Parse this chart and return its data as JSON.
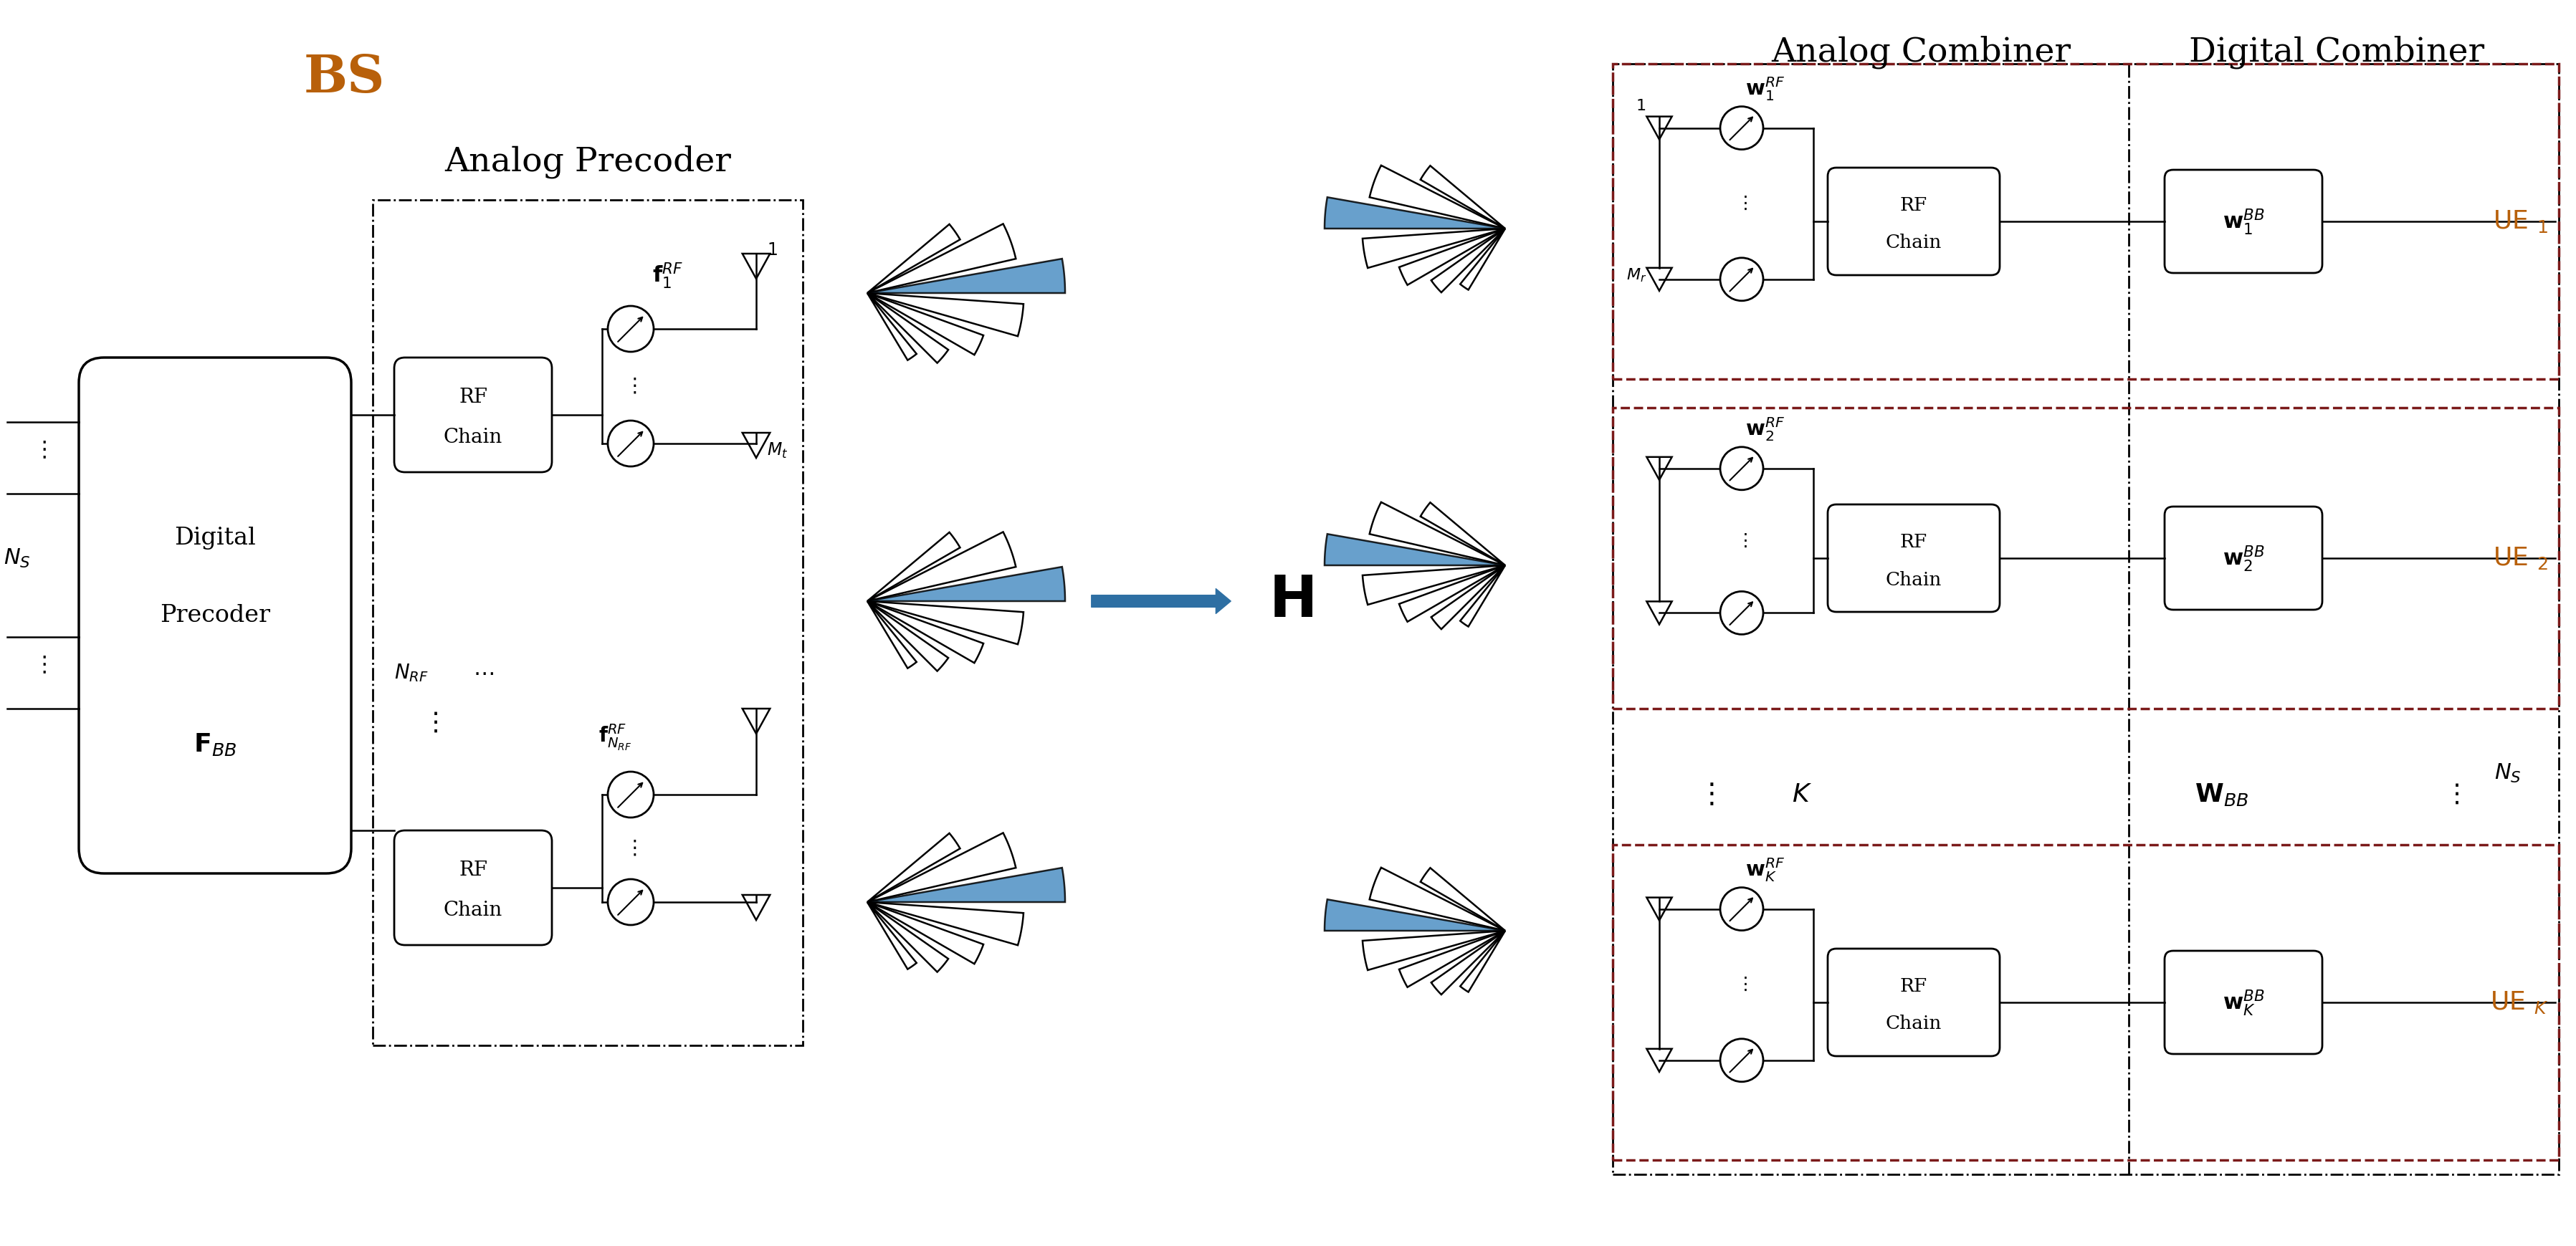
{
  "bg_color": "#ffffff",
  "title_bs": "BS",
  "title_bs_color": "#b8600a",
  "title_bs_fontsize": 52,
  "title_analog_precoder": "Analog Precoder",
  "title_analog_combiner": "Analog Combiner",
  "title_digital_combiner": "Digital Combiner",
  "title_fontsize": 34,
  "orange_color": "#b8600a",
  "dark_red_color": "#7b1a1a",
  "arrow_blue": "#2e6fa3",
  "black": "#000000"
}
